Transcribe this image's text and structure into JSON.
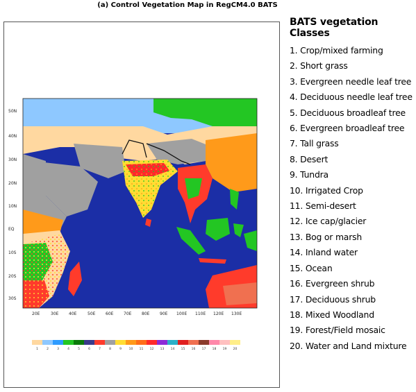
{
  "title": "(a) Control Vegetation Map in RegCM4.0 BATS",
  "map": {
    "lat_labels": [
      "50N",
      "40N",
      "30N",
      "20N",
      "10N",
      "EQ",
      "10S",
      "20S",
      "30S"
    ],
    "lon_labels": [
      "20E",
      "30E",
      "40E",
      "50E",
      "60E",
      "70E",
      "80E",
      "90E",
      "100E",
      "110E",
      "120E",
      "130E"
    ],
    "ocean_color": "#1b2ea6",
    "colorbar": {
      "labels": [
        "1",
        "2",
        "3",
        "4",
        "5",
        "6",
        "7",
        "8",
        "9",
        "10",
        "11",
        "12",
        "13",
        "14",
        "15",
        "16",
        "17",
        "18",
        "19",
        "20"
      ],
      "colors": [
        "#ffd8a0",
        "#8ec8ff",
        "#2e9bff",
        "#23c623",
        "#0a7a0a",
        "#3a3a8a",
        "#ff3b2b",
        "#a0a0a0",
        "#ffdd33",
        "#ff9a1a",
        "#ff6e1a",
        "#ff2a2a",
        "#8c2bd6",
        "#2bb0c8",
        "#e02020",
        "#f07050",
        "#8b3b2b",
        "#ff88aa",
        "#ffc0c0",
        "#ffee88"
      ]
    }
  },
  "legend": {
    "title": "BATS vegetation Classes",
    "items": [
      "1. Crop/mixed farming",
      "2. Short grass",
      "3. Evergreen needle leaf tree",
      "4. Deciduous needle leaf tree",
      "5. Deciduous broadleaf tree",
      "6. Evergreen broadleaf tree",
      "7. Tall grass",
      "8. Desert",
      "9. Tundra",
      "10. Irrigated Crop",
      "11. Semi-desert",
      "12. Ice cap/glacier",
      "13. Bog or marsh",
      "14. Inland water",
      "15. Ocean",
      "16. Evergreen shrub",
      "17. Deciduous shrub",
      "18. Mixed Woodland",
      "19. Forest/Field mosaic",
      "20. Water and Land mixture"
    ]
  }
}
